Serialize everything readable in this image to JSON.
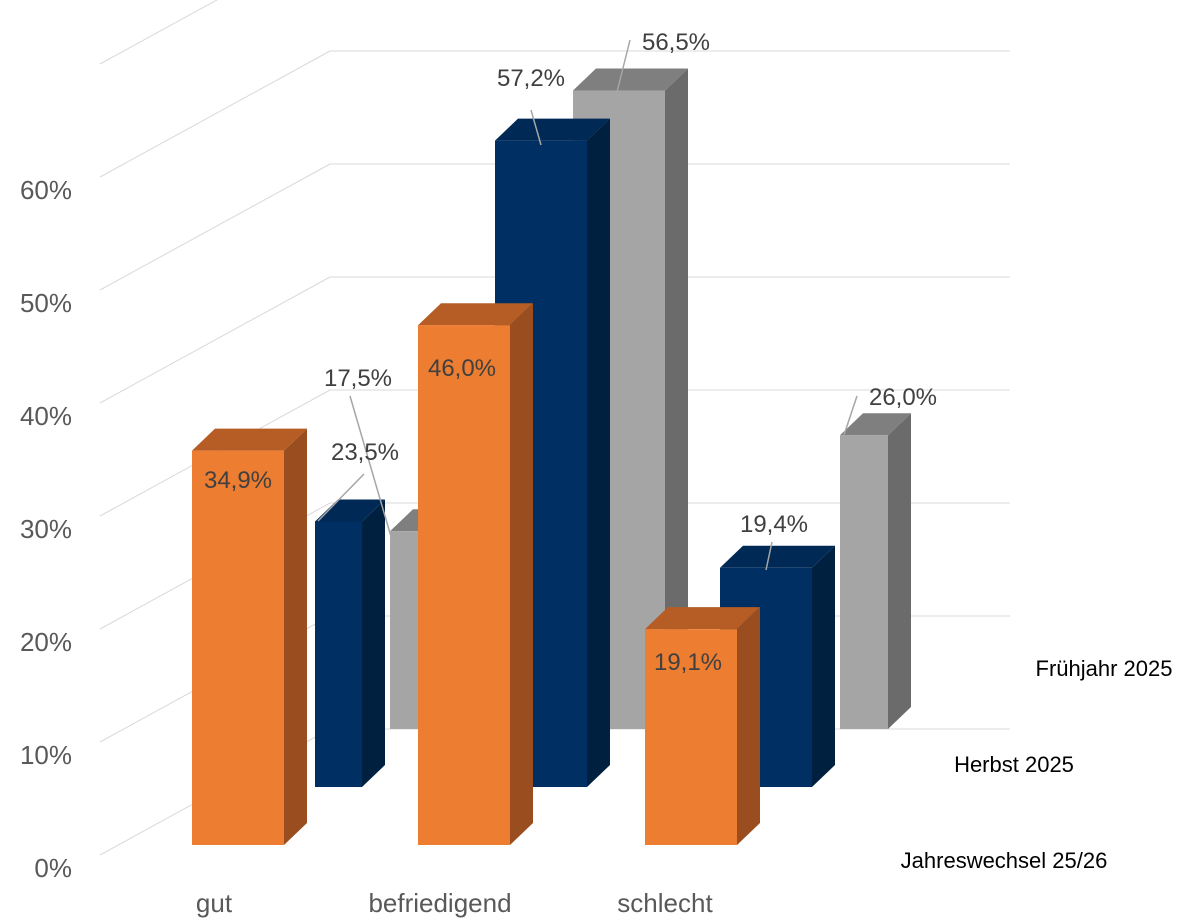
{
  "chart_data": {
    "type": "bar",
    "categories": [
      "gut",
      "befriedigend",
      "schlecht"
    ],
    "series": [
      {
        "name": "Frühjahr 2025",
        "values": [
          17.5,
          56.5,
          26.0
        ],
        "labels": [
          "17,5%",
          "56,5%",
          "26,0%"
        ]
      },
      {
        "name": "Herbst 2025",
        "values": [
          23.5,
          57.2,
          19.4
        ],
        "labels": [
          "23,5%",
          "57,2%",
          "19,4%"
        ]
      },
      {
        "name": "Jahreswechsel 25/26",
        "values": [
          34.9,
          46.0,
          19.1
        ],
        "labels": [
          "34,9%",
          "46,0%",
          "19,1%"
        ]
      }
    ],
    "y_ticks": [
      "0%",
      "10%",
      "20%",
      "30%",
      "40%",
      "50%",
      "60%"
    ],
    "ylim": [
      0,
      60
    ],
    "grid": true,
    "colors": {
      "Frühjahr 2025": {
        "front": "#A5A5A5",
        "side": "#6B6B6B",
        "top": "#7F7F7F"
      },
      "Herbst 2025": {
        "front": "#003063",
        "side": "#00203F",
        "top": "#002A55"
      },
      "Jahreswechsel 25/26": {
        "front": "#ED7D31",
        "side": "#9A4E1F",
        "top": "#B55D24"
      }
    },
    "style": "3d-clustered-depth"
  }
}
